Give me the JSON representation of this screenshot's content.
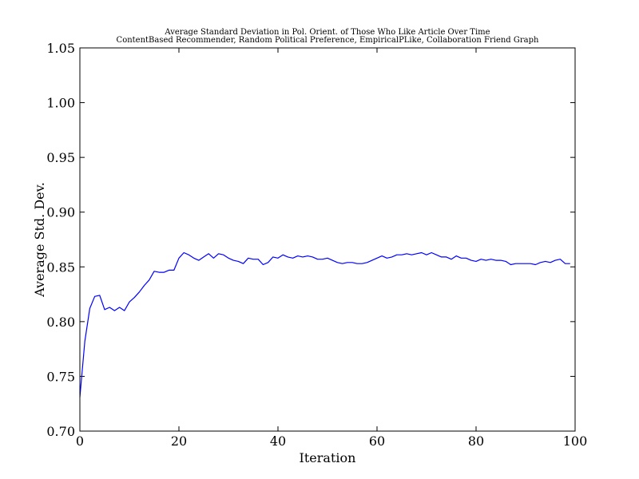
{
  "chart_data": {
    "type": "line",
    "title": "Average Standard Deviation in Pol. Orient. of Those Who Like Article Over Time",
    "subtitle": "ContentBased Recommender, Random Political Preference,  EmpiricalPLike, Collaboration Friend Graph",
    "xlabel": "Iteration",
    "ylabel": "Average Std. Dev.",
    "xlim": [
      0,
      100
    ],
    "ylim": [
      0.7,
      1.05
    ],
    "xticks": [
      0,
      20,
      40,
      60,
      80,
      100
    ],
    "yticks": [
      0.7,
      0.75,
      0.8,
      0.85,
      0.9,
      0.95,
      1.0,
      1.05
    ],
    "xtick_labels": [
      "0",
      "20",
      "40",
      "60",
      "80",
      "100"
    ],
    "ytick_labels": [
      "0.70",
      "0.75",
      "0.80",
      "0.85",
      "0.90",
      "0.95",
      "1.00",
      "1.05"
    ],
    "grid": false,
    "line_color": "#0000ff",
    "series": [
      {
        "color": "#0000ff",
        "x": [
          0,
          1,
          2,
          3,
          4,
          5,
          6,
          7,
          8,
          9,
          10,
          11,
          12,
          13,
          14,
          15,
          16,
          17,
          18,
          19,
          20,
          21,
          22,
          23,
          24,
          25,
          26,
          27,
          28,
          29,
          30,
          31,
          32,
          33,
          34,
          35,
          36,
          37,
          38,
          39,
          40,
          41,
          42,
          43,
          44,
          45,
          46,
          47,
          48,
          49,
          50,
          51,
          52,
          53,
          54,
          55,
          56,
          57,
          58,
          59,
          60,
          61,
          62,
          63,
          64,
          65,
          66,
          67,
          68,
          69,
          70,
          71,
          72,
          73,
          74,
          75,
          76,
          77,
          78,
          79,
          80,
          81,
          82,
          83,
          84,
          85,
          86,
          87,
          88,
          89,
          90,
          91,
          92,
          93,
          94,
          95,
          96,
          97,
          98,
          99
        ],
        "y": [
          0.731,
          0.782,
          0.812,
          0.823,
          0.824,
          0.811,
          0.813,
          0.81,
          0.813,
          0.81,
          0.818,
          0.822,
          0.827,
          0.833,
          0.838,
          0.846,
          0.845,
          0.845,
          0.847,
          0.847,
          0.858,
          0.863,
          0.861,
          0.858,
          0.856,
          0.859,
          0.862,
          0.858,
          0.862,
          0.861,
          0.858,
          0.856,
          0.855,
          0.853,
          0.858,
          0.857,
          0.857,
          0.852,
          0.854,
          0.859,
          0.858,
          0.861,
          0.859,
          0.858,
          0.86,
          0.859,
          0.86,
          0.859,
          0.857,
          0.857,
          0.858,
          0.856,
          0.854,
          0.853,
          0.854,
          0.854,
          0.853,
          0.853,
          0.854,
          0.856,
          0.858,
          0.86,
          0.858,
          0.859,
          0.861,
          0.861,
          0.862,
          0.861,
          0.862,
          0.863,
          0.861,
          0.863,
          0.861,
          0.859,
          0.859,
          0.857,
          0.86,
          0.858,
          0.858,
          0.856,
          0.855,
          0.857,
          0.856,
          0.857,
          0.856,
          0.856,
          0.855,
          0.852,
          0.853,
          0.853,
          0.853,
          0.853,
          0.852,
          0.854,
          0.855,
          0.854,
          0.856,
          0.857,
          0.853,
          0.853
        ]
      }
    ]
  }
}
